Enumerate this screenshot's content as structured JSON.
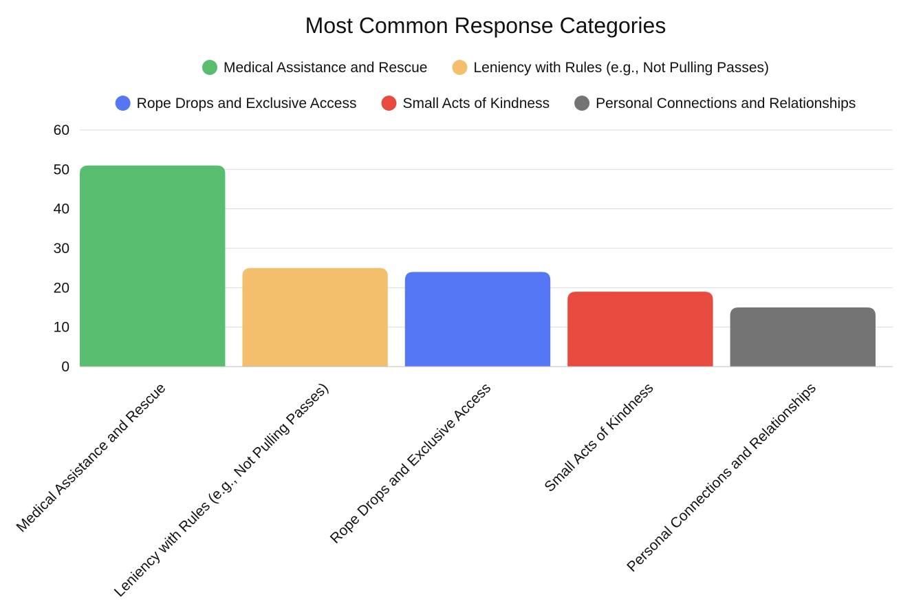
{
  "chart_data": {
    "type": "bar",
    "title": "Most Common Response Categories",
    "xlabel": "",
    "ylabel": "",
    "categories": [
      "Medical Assistance and Rescue",
      "Leniency with Rules (e.g., Not Pulling Passes)",
      "Rope Drops and Exclusive Access",
      "Small Acts of Kindness",
      "Personal Connections and Relationships"
    ],
    "values": [
      51,
      25,
      24,
      19,
      15
    ],
    "colors": [
      "#58bd6e",
      "#f4bf6d",
      "#5677f5",
      "#e84a40",
      "#747474"
    ],
    "ylim": [
      0,
      60
    ],
    "yticks": [
      0,
      10,
      20,
      30,
      40,
      50,
      60
    ],
    "grid": true,
    "legend_position": "top",
    "legend": [
      {
        "label": "Medical Assistance and Rescue",
        "color": "#58bd6e"
      },
      {
        "label": "Leniency with Rules (e.g., Not Pulling Passes)",
        "color": "#f4bf6d"
      },
      {
        "label": "Rope Drops and Exclusive Access",
        "color": "#5677f5"
      },
      {
        "label": "Small Acts of Kindness",
        "color": "#e84a40"
      },
      {
        "label": "Personal Connections and Relationships",
        "color": "#747474"
      }
    ]
  }
}
